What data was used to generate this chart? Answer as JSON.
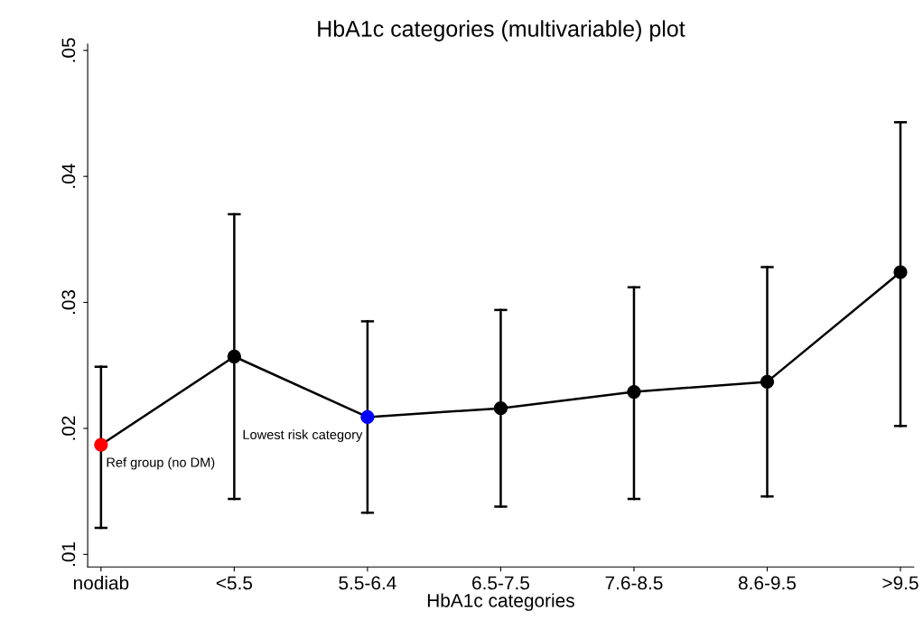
{
  "chart_data": {
    "type": "line",
    "title": "HbA1c categories (multivariable) plot",
    "xlabel": "HbA1c categories",
    "categories": [
      "nodiab",
      "<5.5",
      "5.5-6.4",
      "6.5-7.5",
      "7.6-8.5",
      "8.6-9.5",
      ">9.5"
    ],
    "series": [
      {
        "color": "#000000",
        "colors": [
          "#ff0000",
          "#000000",
          "#0000ff",
          "#000000",
          "#000000",
          "#000000",
          "#000000"
        ],
        "values": [
          0.0187,
          0.0257,
          0.0209,
          0.0216,
          0.0229,
          0.0237,
          0.0324
        ],
        "errors": [
          [
            0.0121,
            0.0249
          ],
          [
            0.0144,
            0.037
          ],
          [
            0.0133,
            0.0285
          ],
          [
            0.0138,
            0.0294
          ],
          [
            0.0144,
            0.0312
          ],
          [
            0.0146,
            0.0328
          ],
          [
            0.0202,
            0.0443
          ]
        ]
      }
    ],
    "ylim": [
      0.009,
      0.0505
    ],
    "yticks": [
      {
        "value": 0.01,
        "label": ".01"
      },
      {
        "value": 0.02,
        "label": ".02"
      },
      {
        "value": 0.03,
        "label": ".03"
      },
      {
        "value": 0.04,
        "label": ".04"
      },
      {
        "value": 0.05,
        "label": ".05"
      }
    ],
    "annotations": [
      {
        "text": "Ref group (no DM)",
        "x": "nodiab",
        "y": 0.0187
      },
      {
        "text": "Lowest risk category",
        "x": "5.5-6.4",
        "y": 0.0209
      }
    ],
    "marker": "circle",
    "line_style": "solid",
    "grid": false,
    "legend": false
  }
}
